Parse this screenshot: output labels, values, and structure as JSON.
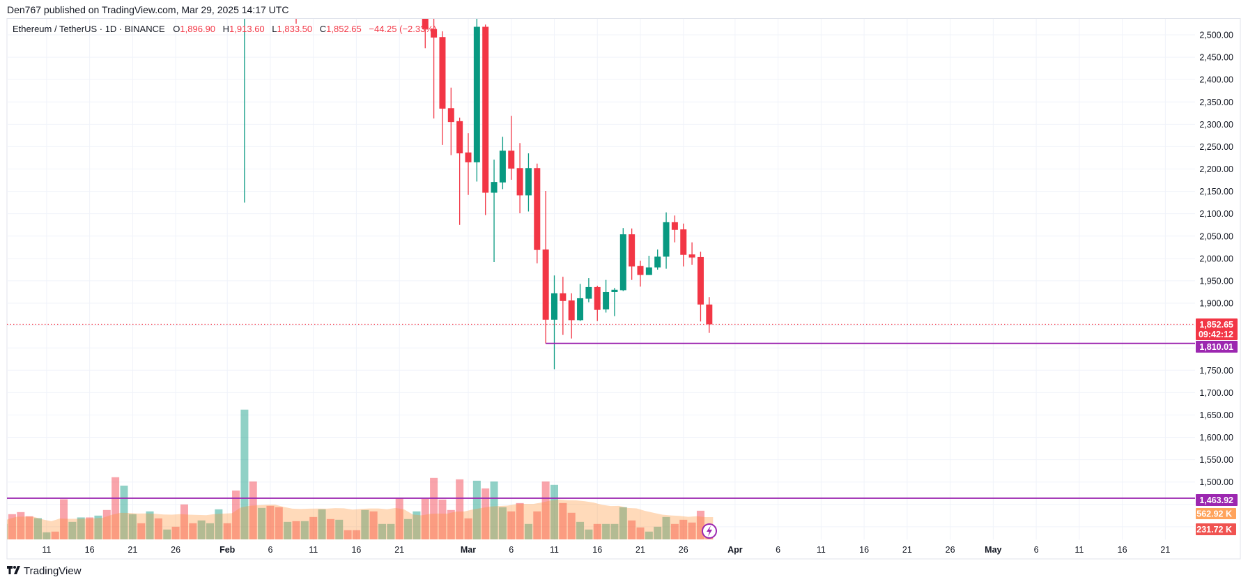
{
  "header": {
    "published": "Den767 published on TradingView.com, Mar 29, 2025 14:17 UTC"
  },
  "legend": {
    "symbol": "Ethereum / TetherUS · 1D · BINANCE",
    "o_label": "O",
    "o": "1,896.90",
    "h_label": "H",
    "h": "1,913.60",
    "l_label": "L",
    "l": "1,833.50",
    "c_label": "C",
    "c": "1,852.65",
    "change": "−44.25 (−2.33%)"
  },
  "colors": {
    "up": "#089981",
    "down": "#f23645",
    "horizontal_line": "#9c27b0",
    "volume_ma": "#ff9800",
    "grid": "#f0f3fa",
    "current_price": "#f23645"
  },
  "price_labels": {
    "current": {
      "price": 1852.65,
      "label": "1,852.65",
      "countdown": "09:42:12"
    },
    "lines": [
      {
        "price": 1810.01,
        "label": "1,810.01",
        "start": "2025-03-10"
      },
      {
        "price": 1463.92,
        "label": "1,463.92",
        "start": null
      }
    ],
    "volume_ma": {
      "value_k": 562.92,
      "label": "562.92 K"
    },
    "volume_current": {
      "value_k": 231.72,
      "label": "231.72 K"
    }
  },
  "footer": {
    "brand": "TradingView",
    "icon": "tradingview-logo"
  },
  "event_icon": "lightning-icon",
  "chart_data": {
    "type": "candlestick",
    "symbol": "ETHUSDT",
    "interval": "1D",
    "grid": true,
    "ylim": [
      1400,
      2520
    ],
    "y_ticks": [
      {
        "value": 2500,
        "label": "2,500.00"
      },
      {
        "value": 2450,
        "label": "2,450.00"
      },
      {
        "value": 2400,
        "label": "2,400.00"
      },
      {
        "value": 2350,
        "label": "2,350.00"
      },
      {
        "value": 2300,
        "label": "2,300.00"
      },
      {
        "value": 2250,
        "label": "2,250.00"
      },
      {
        "value": 2200,
        "label": "2,200.00"
      },
      {
        "value": 2150,
        "label": "2,150.00"
      },
      {
        "value": 2100,
        "label": "2,100.00"
      },
      {
        "value": 2050,
        "label": "2,050.00"
      },
      {
        "value": 2000,
        "label": "2,000.00"
      },
      {
        "value": 1950,
        "label": "1,950.00"
      },
      {
        "value": 1900,
        "label": "1,900.00"
      },
      {
        "value": 1750,
        "label": "1,750.00"
      },
      {
        "value": 1700,
        "label": "1,700.00"
      },
      {
        "value": 1650,
        "label": "1,650.00"
      },
      {
        "value": 1600,
        "label": "1,600.00"
      },
      {
        "value": 1550,
        "label": "1,550.00"
      },
      {
        "value": 1500,
        "label": "1,500.00"
      }
    ],
    "x_ticks": [
      {
        "date": "2025-01-11",
        "label": "11"
      },
      {
        "date": "2025-01-16",
        "label": "16"
      },
      {
        "date": "2025-01-21",
        "label": "21"
      },
      {
        "date": "2025-01-26",
        "label": "26"
      },
      {
        "date": "2025-02-01",
        "label": "Feb",
        "month": true
      },
      {
        "date": "2025-02-06",
        "label": "6"
      },
      {
        "date": "2025-02-11",
        "label": "11"
      },
      {
        "date": "2025-02-16",
        "label": "16"
      },
      {
        "date": "2025-02-21",
        "label": "21"
      },
      {
        "date": "2025-03-01",
        "label": "Mar",
        "month": true
      },
      {
        "date": "2025-03-06",
        "label": "6"
      },
      {
        "date": "2025-03-11",
        "label": "11"
      },
      {
        "date": "2025-03-16",
        "label": "16"
      },
      {
        "date": "2025-03-21",
        "label": "21"
      },
      {
        "date": "2025-03-26",
        "label": "26"
      },
      {
        "date": "2025-04-01",
        "label": "Apr",
        "month": true
      },
      {
        "date": "2025-04-06",
        "label": "6"
      },
      {
        "date": "2025-04-11",
        "label": "11"
      },
      {
        "date": "2025-04-16",
        "label": "16"
      },
      {
        "date": "2025-04-21",
        "label": "21"
      },
      {
        "date": "2025-04-26",
        "label": "26"
      },
      {
        "date": "2025-05-01",
        "label": "May",
        "month": true
      },
      {
        "date": "2025-05-06",
        "label": "6"
      },
      {
        "date": "2025-05-11",
        "label": "11"
      },
      {
        "date": "2025-05-16",
        "label": "16"
      },
      {
        "date": "2025-05-21",
        "label": "21"
      }
    ],
    "candles": [
      {
        "date": "2025-02-03",
        "o": 2870,
        "h": 2925,
        "l": 2125,
        "c": 2880
      },
      {
        "date": "2025-02-09",
        "o": 2630,
        "h": 2700,
        "l": 2525,
        "c": 2627
      },
      {
        "date": "2025-02-24",
        "o": 2820,
        "h": 2855,
        "l": 2470,
        "c": 2513
      },
      {
        "date": "2025-02-25",
        "o": 2513,
        "h": 2553,
        "l": 2313,
        "c": 2494
      },
      {
        "date": "2025-02-26",
        "o": 2495,
        "h": 2508,
        "l": 2254,
        "c": 2335
      },
      {
        "date": "2025-02-27",
        "o": 2336,
        "h": 2382,
        "l": 2231,
        "c": 2305
      },
      {
        "date": "2025-02-28",
        "o": 2307,
        "h": 2315,
        "l": 2075,
        "c": 2235
      },
      {
        "date": "2025-03-01",
        "o": 2237,
        "h": 2280,
        "l": 2142,
        "c": 2215
      },
      {
        "date": "2025-03-02",
        "o": 2215,
        "h": 2550,
        "l": 2172,
        "c": 2518
      },
      {
        "date": "2025-03-03",
        "o": 2518,
        "h": 2523,
        "l": 2097,
        "c": 2147
      },
      {
        "date": "2025-03-04",
        "o": 2147,
        "h": 2221,
        "l": 1992,
        "c": 2171
      },
      {
        "date": "2025-03-05",
        "o": 2170,
        "h": 2272,
        "l": 2155,
        "c": 2241
      },
      {
        "date": "2025-03-06",
        "o": 2241,
        "h": 2319,
        "l": 2176,
        "c": 2201
      },
      {
        "date": "2025-03-07",
        "o": 2202,
        "h": 2258,
        "l": 2101,
        "c": 2141
      },
      {
        "date": "2025-03-08",
        "o": 2141,
        "h": 2235,
        "l": 2105,
        "c": 2202
      },
      {
        "date": "2025-03-09",
        "o": 2202,
        "h": 2212,
        "l": 1989,
        "c": 2019
      },
      {
        "date": "2025-03-10",
        "o": 2020,
        "h": 2151,
        "l": 1810.01,
        "c": 1863
      },
      {
        "date": "2025-03-11",
        "o": 1863,
        "h": 1962,
        "l": 1752,
        "c": 1922
      },
      {
        "date": "2025-03-12",
        "o": 1922,
        "h": 1959,
        "l": 1829,
        "c": 1905
      },
      {
        "date": "2025-03-13",
        "o": 1906,
        "h": 1922,
        "l": 1821,
        "c": 1862
      },
      {
        "date": "2025-03-14",
        "o": 1862,
        "h": 1943,
        "l": 1860,
        "c": 1911
      },
      {
        "date": "2025-03-15",
        "o": 1910,
        "h": 1956,
        "l": 1902,
        "c": 1936
      },
      {
        "date": "2025-03-16",
        "o": 1936,
        "h": 1939,
        "l": 1860,
        "c": 1885
      },
      {
        "date": "2025-03-17",
        "o": 1886,
        "h": 1952,
        "l": 1879,
        "c": 1925
      },
      {
        "date": "2025-03-18",
        "o": 1925,
        "h": 1934,
        "l": 1871,
        "c": 1930
      },
      {
        "date": "2025-03-19",
        "o": 1929,
        "h": 2068,
        "l": 1927,
        "c": 2054
      },
      {
        "date": "2025-03-20",
        "o": 2054,
        "h": 2067,
        "l": 1952,
        "c": 1982
      },
      {
        "date": "2025-03-21",
        "o": 1983,
        "h": 1995,
        "l": 1937,
        "c": 1963
      },
      {
        "date": "2025-03-22",
        "o": 1963,
        "h": 2006,
        "l": 1963,
        "c": 1980
      },
      {
        "date": "2025-03-23",
        "o": 1980,
        "h": 2020,
        "l": 1975,
        "c": 2004
      },
      {
        "date": "2025-03-24",
        "o": 2004,
        "h": 2103,
        "l": 1977,
        "c": 2081
      },
      {
        "date": "2025-03-25",
        "o": 2081,
        "h": 2096,
        "l": 2036,
        "c": 2064
      },
      {
        "date": "2025-03-26",
        "o": 2065,
        "h": 2078,
        "l": 1982,
        "c": 2008
      },
      {
        "date": "2025-03-27",
        "o": 2009,
        "h": 2036,
        "l": 1986,
        "c": 2002
      },
      {
        "date": "2025-03-28",
        "o": 2003,
        "h": 2015,
        "l": 1859,
        "c": 1896.9
      },
      {
        "date": "2025-03-29",
        "o": 1896.9,
        "h": 1913.6,
        "l": 1833.5,
        "c": 1852.65
      }
    ],
    "volume_start": "2025-01-06",
    "volume_k": [
      330,
      534,
      577,
      490,
      451,
      155,
      170,
      844,
      373,
      466,
      466,
      504,
      621,
      1305,
      1130,
      534,
      344,
      592,
      446,
      213,
      272,
      737,
      344,
      403,
      344,
      635,
      344,
      1028,
      2716,
      1217,
      664,
      708,
      679,
      373,
      388,
      388,
      475,
      635,
      432,
      417,
      199,
      199,
      621,
      592,
      330,
      330,
      868,
      432,
      592,
      854,
      1290,
      839,
      621,
      1261,
      446,
      1232,
      1072,
      1217,
      679,
      592,
      766,
      330,
      592,
      1217,
      1145,
      766,
      563,
      373,
      213,
      330,
      330,
      330,
      679,
      403,
      257,
      170,
      272,
      475,
      330,
      417,
      359,
      606,
      231.72
    ],
    "volume_dir": [
      "up",
      "down",
      "down",
      "down",
      "up",
      "up",
      "down",
      "down",
      "up",
      "up",
      "down",
      "up",
      "down",
      "down",
      "up",
      "up",
      "down",
      "up",
      "down",
      "up",
      "down",
      "down",
      "down",
      "up",
      "up",
      "up",
      "down",
      "down",
      "up",
      "down",
      "up",
      "down",
      "down",
      "up",
      "down",
      "up",
      "down",
      "up",
      "down",
      "up",
      "down",
      "down",
      "up",
      "down",
      "up",
      "up",
      "down",
      "up",
      "up",
      "down",
      "down",
      "down",
      "down",
      "down",
      "down",
      "up",
      "down",
      "up",
      "up",
      "down",
      "down",
      "up",
      "down",
      "down",
      "up",
      "down",
      "down",
      "up",
      "up",
      "down",
      "up",
      "up",
      "up",
      "down",
      "down",
      "up",
      "up",
      "up",
      "down",
      "down",
      "down",
      "down",
      "down"
    ]
  }
}
